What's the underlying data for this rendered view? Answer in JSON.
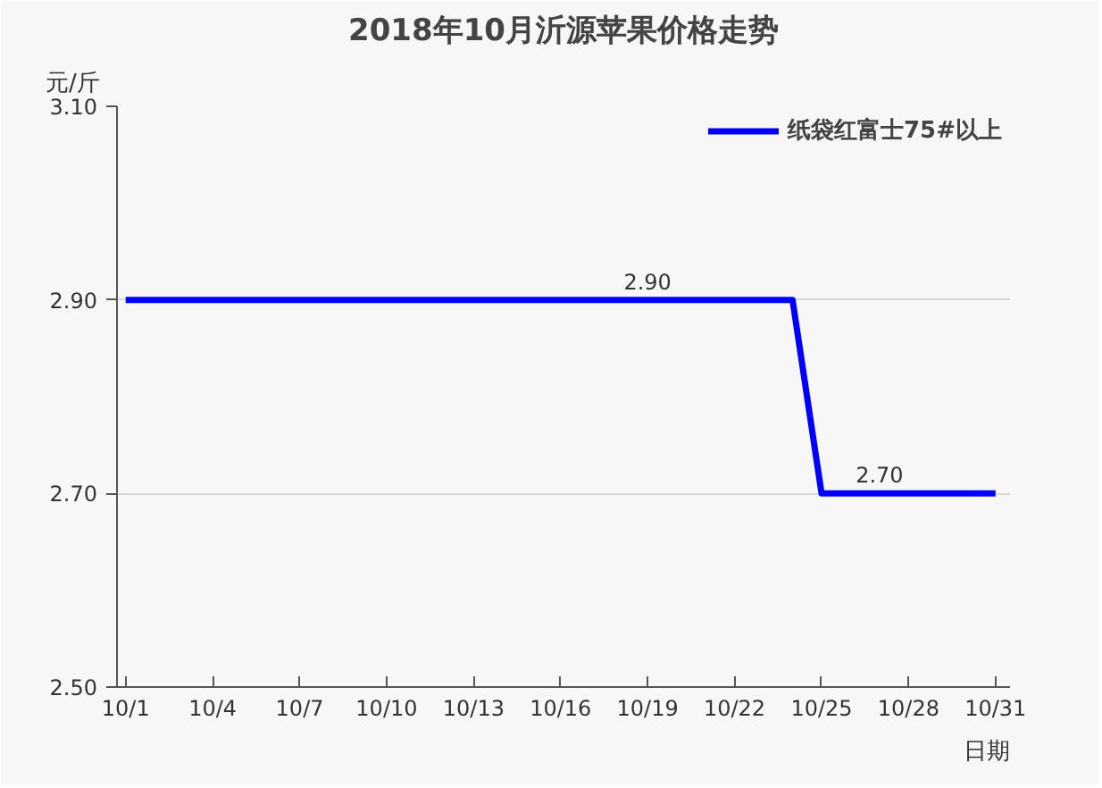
{
  "chart_data": {
    "type": "line",
    "title": "2018年10月沂源苹果价格走势",
    "xlabel": "日期",
    "ylabel": "元/斤",
    "categories": [
      "10/1",
      null,
      null,
      "10/4",
      null,
      null,
      "10/7",
      null,
      null,
      "10/10",
      null,
      null,
      "10/13",
      null,
      null,
      "10/16",
      null,
      null,
      "10/19",
      null,
      null,
      "10/22",
      null,
      null,
      "10/25",
      null,
      null,
      "10/28",
      null,
      null,
      "10/31"
    ],
    "series": [
      {
        "name": "纸袋红富士75#以上",
        "color": "#0000ff",
        "values": [
          2.9,
          2.9,
          2.9,
          2.9,
          2.9,
          2.9,
          2.9,
          2.9,
          2.9,
          2.9,
          2.9,
          2.9,
          2.9,
          2.9,
          2.9,
          2.9,
          2.9,
          2.9,
          2.9,
          2.9,
          2.9,
          2.9,
          2.9,
          2.9,
          2.7,
          2.7,
          2.7,
          2.7,
          2.7,
          2.7,
          2.7
        ],
        "value_labels": [
          null,
          null,
          null,
          null,
          null,
          null,
          null,
          null,
          null,
          null,
          null,
          null,
          null,
          null,
          null,
          null,
          null,
          null,
          "2.90",
          null,
          null,
          null,
          null,
          null,
          null,
          null,
          "2.70",
          null,
          null,
          null,
          null
        ]
      }
    ],
    "ylim": [
      2.5,
      3.1
    ],
    "yticks": [
      {
        "value": 2.5,
        "label": "2.50"
      },
      {
        "value": 2.7,
        "label": "2.70"
      },
      {
        "value": 2.9,
        "label": "2.90"
      },
      {
        "value": 3.1,
        "label": "3.10"
      }
    ],
    "grid": "y",
    "legend": "top right",
    "marker": "none",
    "line_style": "solid"
  }
}
